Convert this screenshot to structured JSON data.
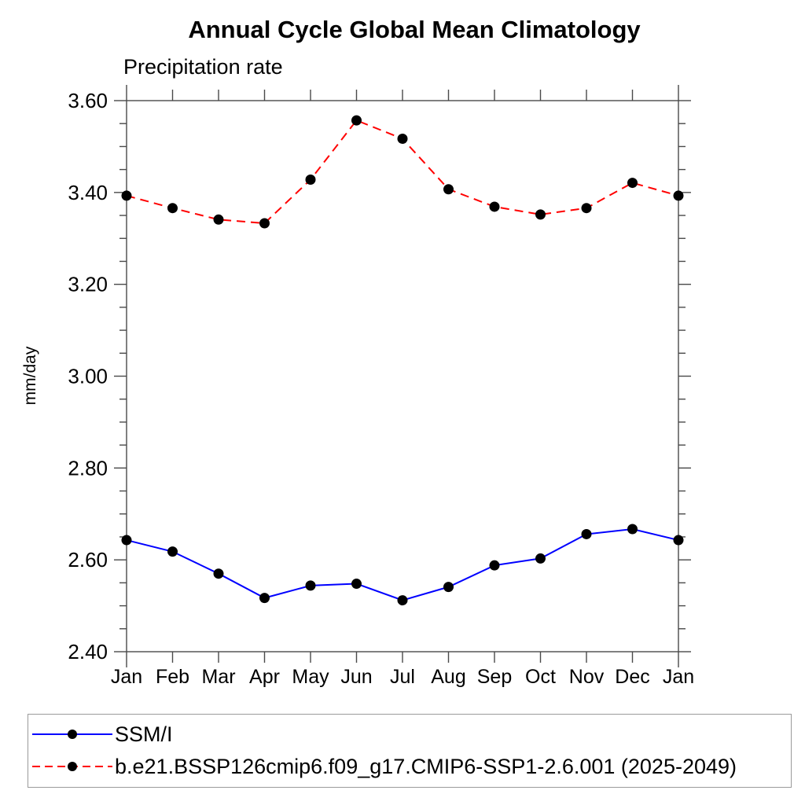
{
  "header": {
    "title": "Annual Cycle Global Mean Climatology",
    "subtitle": "Precipitation rate"
  },
  "chart_data": {
    "type": "line",
    "title": "Annual Cycle Global Mean Climatology",
    "subtitle": "Precipitation rate",
    "xlabel": "",
    "ylabel": "mm/day",
    "categories": [
      "Jan",
      "Feb",
      "Mar",
      "Apr",
      "May",
      "Jun",
      "Jul",
      "Aug",
      "Sep",
      "Oct",
      "Nov",
      "Dec",
      "Jan"
    ],
    "ylim": [
      2.4,
      3.6
    ],
    "ytick_major_step": 0.2,
    "ytick_minor_step": 0.05,
    "ytick_labels": [
      "2.40",
      "2.60",
      "2.80",
      "3.00",
      "3.20",
      "3.40",
      "3.60"
    ],
    "grid": false,
    "legend_position": "bottom",
    "axis_color": "#4a4a4a",
    "text_color": "#000000",
    "marker": {
      "shape": "circle",
      "color": "#000000",
      "radius": 6.5
    },
    "series": [
      {
        "name": "SSM/I",
        "color": "#0000ff",
        "style": "solid",
        "values": [
          2.643,
          2.618,
          2.57,
          2.517,
          2.544,
          2.548,
          2.512,
          2.541,
          2.588,
          2.603,
          2.656,
          2.667,
          2.643
        ]
      },
      {
        "name": "b.e21.BSSP126cmip6.f09_g17.CMIP6-SSP1-2.6.001 (2025-2049)",
        "color": "#ff0000",
        "style": "dashed",
        "values": [
          3.393,
          3.366,
          3.341,
          3.333,
          3.428,
          3.557,
          3.517,
          3.407,
          3.369,
          3.352,
          3.366,
          3.421,
          3.393
        ]
      }
    ]
  }
}
